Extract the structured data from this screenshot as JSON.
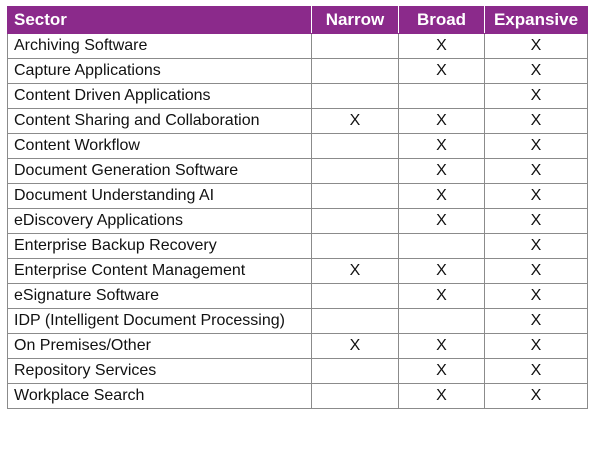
{
  "columns": [
    "Sector",
    "Narrow",
    "Broad",
    "Expansive"
  ],
  "rows": [
    {
      "sector": "Archiving Software",
      "narrow": "",
      "broad": "X",
      "expansive": "X"
    },
    {
      "sector": "Capture Applications",
      "narrow": "",
      "broad": "X",
      "expansive": "X"
    },
    {
      "sector": "Content Driven Applications",
      "narrow": "",
      "broad": "",
      "expansive": "X"
    },
    {
      "sector": "Content Sharing and Collaboration",
      "narrow": "X",
      "broad": "X",
      "expansive": "X"
    },
    {
      "sector": "Content Workflow",
      "narrow": "",
      "broad": "X",
      "expansive": "X"
    },
    {
      "sector": "Document Generation Software",
      "narrow": "",
      "broad": "X",
      "expansive": "X"
    },
    {
      "sector": "Document Understanding AI",
      "narrow": "",
      "broad": "X",
      "expansive": "X"
    },
    {
      "sector": "eDiscovery Applications",
      "narrow": "",
      "broad": "X",
      "expansive": "X"
    },
    {
      "sector": "Enterprise Backup Recovery",
      "narrow": "",
      "broad": "",
      "expansive": "X"
    },
    {
      "sector": "Enterprise Content Management",
      "narrow": "X",
      "broad": "X",
      "expansive": "X"
    },
    {
      "sector": "eSignature Software",
      "narrow": "",
      "broad": "X",
      "expansive": "X"
    },
    {
      "sector": "IDP (Intelligent Document Processing)",
      "narrow": "",
      "broad": "",
      "expansive": "X"
    },
    {
      "sector": "On Premises/Other",
      "narrow": "X",
      "broad": "X",
      "expansive": "X"
    },
    {
      "sector": "Repository Services",
      "narrow": "",
      "broad": "X",
      "expansive": "X"
    },
    {
      "sector": "Workplace Search",
      "narrow": "",
      "broad": "X",
      "expansive": "X"
    }
  ],
  "colors": {
    "header_bg": "#8b2a8b",
    "header_text": "#ffffff",
    "border": "#8b8b8b"
  }
}
